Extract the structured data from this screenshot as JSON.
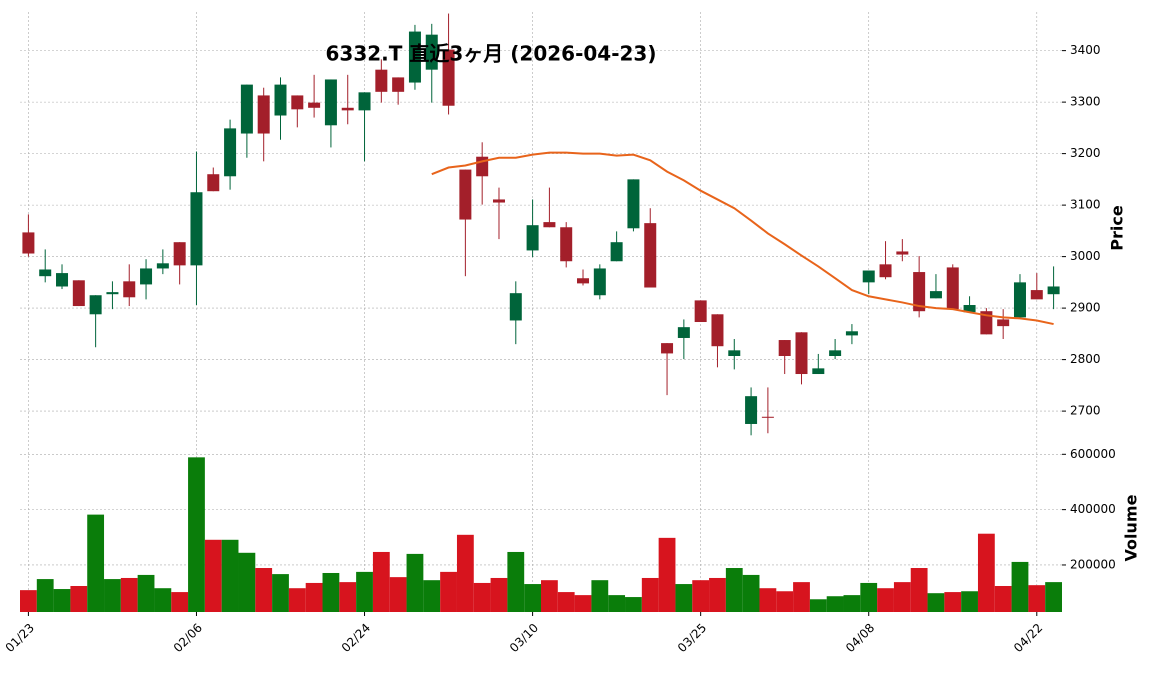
{
  "chart_data": {
    "type": "candlestick",
    "title": "6332.T 直近3ヶ月 (2026-04-23)",
    "categories": [
      "01/23",
      null,
      null,
      null,
      null,
      null,
      null,
      null,
      null,
      null,
      "02/06",
      null,
      null,
      null,
      null,
      null,
      null,
      null,
      null,
      null,
      "02/24",
      null,
      null,
      null,
      null,
      null,
      null,
      null,
      null,
      null,
      "03/10",
      null,
      null,
      null,
      null,
      null,
      null,
      null,
      null,
      null,
      "03/25",
      null,
      null,
      null,
      null,
      null,
      null,
      null,
      null,
      null,
      "04/08",
      null,
      null,
      null,
      null,
      null,
      null,
      null,
      null,
      null,
      "04/22",
      null
    ],
    "open": [
      3047,
      2962,
      2942,
      2954,
      2888,
      2927,
      2952,
      2946,
      2977,
      3028,
      2983,
      3160,
      3156,
      3239,
      3313,
      3274,
      3313,
      3299,
      3255,
      3289,
      3284,
      3363,
      3348,
      3338,
      3363,
      3402,
      3169,
      3194,
      3111,
      2876,
      3012,
      3067,
      3057,
      2958,
      2925,
      2991,
      3055,
      3065,
      2832,
      2842,
      2915,
      2888,
      2807,
      2675,
      2689,
      2838,
      2853,
      2772,
      2807,
      2847,
      2950,
      2985,
      3010,
      2970,
      2919,
      2979,
      2892,
      2894,
      2878,
      2882,
      2935,
      2927
    ],
    "high": [
      3082,
      3014,
      2985,
      2954,
      2925,
      2952,
      2985,
      2995,
      3014,
      3028,
      3204,
      3173,
      3266,
      3334,
      3328,
      3348,
      3313,
      3353,
      3344,
      3353,
      3319,
      3383,
      3348,
      3450,
      3452,
      3472,
      3169,
      3222,
      3134,
      2952,
      3111,
      3134,
      3067,
      2975,
      2985,
      3049,
      3150,
      3094,
      2832,
      2878,
      2915,
      2888,
      2840,
      2746,
      2746,
      2838,
      2853,
      2811,
      2840,
      2869,
      2973,
      3030,
      3034,
      3001,
      2966,
      2985,
      2923,
      2900,
      2898,
      2966,
      2968,
      2981
    ],
    "low": [
      3000,
      2950,
      2937,
      2904,
      2824,
      2898,
      2904,
      2917,
      2966,
      2946,
      2906,
      3127,
      3130,
      3192,
      3185,
      3227,
      3251,
      3270,
      3212,
      3257,
      3185,
      3299,
      3295,
      3324,
      3299,
      3276,
      2962,
      3101,
      3034,
      2830,
      2999,
      3057,
      2979,
      2944,
      2917,
      2991,
      3049,
      2940,
      2731,
      2801,
      2873,
      2785,
      2781,
      2653,
      2657,
      2772,
      2752,
      2772,
      2801,
      2830,
      2927,
      2956,
      2991,
      2882,
      2919,
      2898,
      2892,
      2849,
      2840,
      2882,
      2917,
      2898
    ],
    "close": [
      3006,
      2975,
      2968,
      2904,
      2925,
      2931,
      2921,
      2977,
      2987,
      2983,
      3125,
      3127,
      3249,
      3334,
      3239,
      3334,
      3286,
      3289,
      3344,
      3284,
      3319,
      3320,
      3320,
      3437,
      3431,
      3293,
      3072,
      3156,
      3105,
      2929,
      3061,
      3057,
      2991,
      2948,
      2977,
      3028,
      3150,
      2940,
      2812,
      2863,
      2873,
      2826,
      2818,
      2729,
      2687,
      2807,
      2772,
      2783,
      2818,
      2855,
      2973,
      2960,
      3004,
      2894,
      2933,
      2898,
      2906,
      2849,
      2865,
      2950,
      2917,
      2942
    ],
    "up_color": "#00643a",
    "down_color": "#a31f2a",
    "ma": {
      "color": "#e8641b",
      "values": [
        null,
        null,
        null,
        null,
        null,
        null,
        null,
        null,
        null,
        null,
        null,
        null,
        null,
        null,
        null,
        null,
        null,
        null,
        null,
        null,
        null,
        null,
        null,
        null,
        3160,
        3173,
        3177,
        3185,
        3192,
        3192,
        3198,
        3202,
        3202,
        3200,
        3200,
        3196,
        3198,
        3187,
        3165,
        3148,
        3128,
        3111,
        3094,
        3070,
        3045,
        3024,
        3002,
        2981,
        2958,
        2935,
        2923,
        2917,
        2911,
        2904,
        2900,
        2898,
        2892,
        2886,
        2882,
        2880,
        2876,
        2869
      ]
    },
    "ylabel": "Price",
    "ylim": [
      2640,
      3475
    ],
    "yticks": [
      2700,
      2800,
      2900,
      3000,
      3100,
      3200,
      3300,
      3400
    ],
    "grid": true,
    "volume": {
      "ylabel": "Volume",
      "up_color": "#0a7d0a",
      "down_color": "#d7141e",
      "values": [
        109000,
        149000,
        113000,
        124000,
        382000,
        149000,
        153000,
        164000,
        116000,
        102000,
        589000,
        291000,
        291000,
        244000,
        189000,
        167000,
        116000,
        135000,
        171000,
        138000,
        175000,
        247000,
        156000,
        240000,
        145000,
        175000,
        309000,
        135000,
        153000,
        247000,
        131000,
        145000,
        102000,
        91000,
        145000,
        91000,
        84000,
        153000,
        298000,
        131000,
        145000,
        153000,
        189000,
        164000,
        116000,
        105000,
        138000,
        76000,
        87000,
        91000,
        135000,
        116000,
        138000,
        189000,
        98000,
        102000,
        105000,
        313000,
        124000,
        211000,
        127000,
        138000
      ],
      "ylim": [
        30000,
        630000
      ],
      "yticks": [
        200000,
        400000,
        600000
      ]
    }
  }
}
